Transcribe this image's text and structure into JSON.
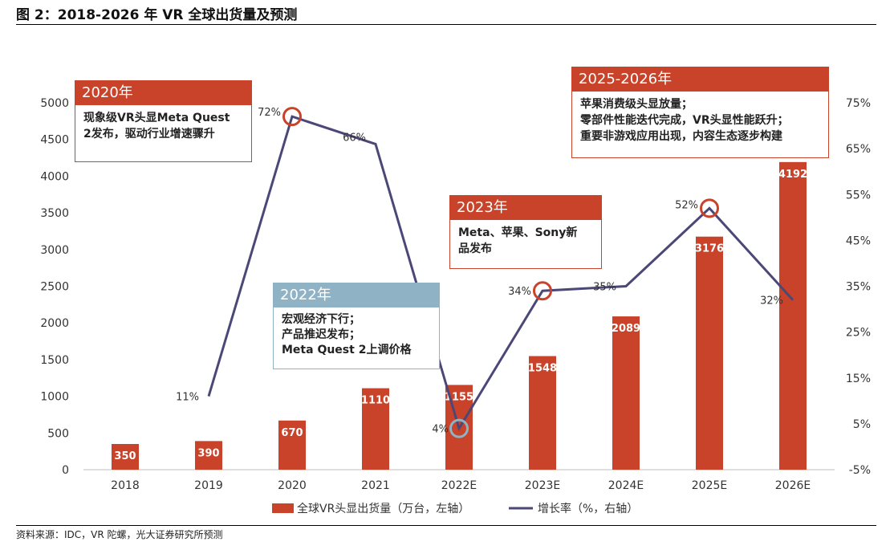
{
  "title": "图 2：2018-2026 年 VR 全球出货量及预测",
  "source": "资料来源：IDC，VR 陀螺，光大证券研究所预测",
  "colors": {
    "bar": "#c8432a",
    "line": "#4b4878",
    "header_red": "#c8432a",
    "header_blue": "#8fb3c4",
    "text": "#222222"
  },
  "chart_data": {
    "type": "bar",
    "categories": [
      "2018",
      "2019",
      "2020",
      "2021",
      "2022E",
      "2023E",
      "2024E",
      "2025E",
      "2026E"
    ],
    "series": [
      {
        "name": "全球VR头显出货量（万台，左轴）",
        "type": "bar",
        "axis": "left",
        "values": [
          350,
          390,
          670,
          1110,
          1155,
          1548,
          2089,
          3176,
          4192
        ],
        "labels": [
          "350",
          "390",
          "670",
          "1110",
          "1155",
          "1548",
          "2089",
          "3176",
          "4192"
        ]
      },
      {
        "name": "增长率（%，右轴）",
        "type": "line",
        "axis": "right",
        "values": [
          null,
          11,
          72,
          66,
          4,
          34,
          35,
          52,
          32
        ],
        "labels": [
          "",
          "11%",
          "72%",
          "66%",
          "4%",
          "34%",
          "35%",
          "52%",
          "32%"
        ]
      }
    ],
    "left_axis": {
      "ylim": [
        0,
        5000
      ],
      "ticks": [
        "0",
        "500",
        "1000",
        "1500",
        "2000",
        "2500",
        "3000",
        "3500",
        "4000",
        "4500",
        "5000"
      ]
    },
    "right_axis": {
      "ylim": [
        -5,
        75
      ],
      "ticks": [
        "-5%",
        "5%",
        "15%",
        "25%",
        "35%",
        "45%",
        "55%",
        "65%",
        "75%"
      ]
    },
    "highlighted_points": [
      "2020",
      "2022E",
      "2023E",
      "2025E"
    ],
    "legend_position": "bottom-center",
    "grid": false
  },
  "callouts": {
    "c2020": {
      "title": "2020年",
      "lines": [
        "现象级VR头显Meta Quest",
        "2发布，驱动行业增速骤升"
      ]
    },
    "c2022": {
      "title": "2022年",
      "lines": [
        "宏观经济下行；",
        "产品推迟发布；",
        "Meta Quest 2上调价格"
      ]
    },
    "c2023": {
      "title": "2023年",
      "lines": [
        "Meta、苹果、Sony新",
        "品发布"
      ]
    },
    "c2025": {
      "title": "2025-2026年",
      "lines": [
        "苹果消费级头显放量；",
        "零部件性能迭代完成，VR头显性能跃升；",
        "重要非游戏应用出现，内容生态逐步构建"
      ]
    }
  }
}
